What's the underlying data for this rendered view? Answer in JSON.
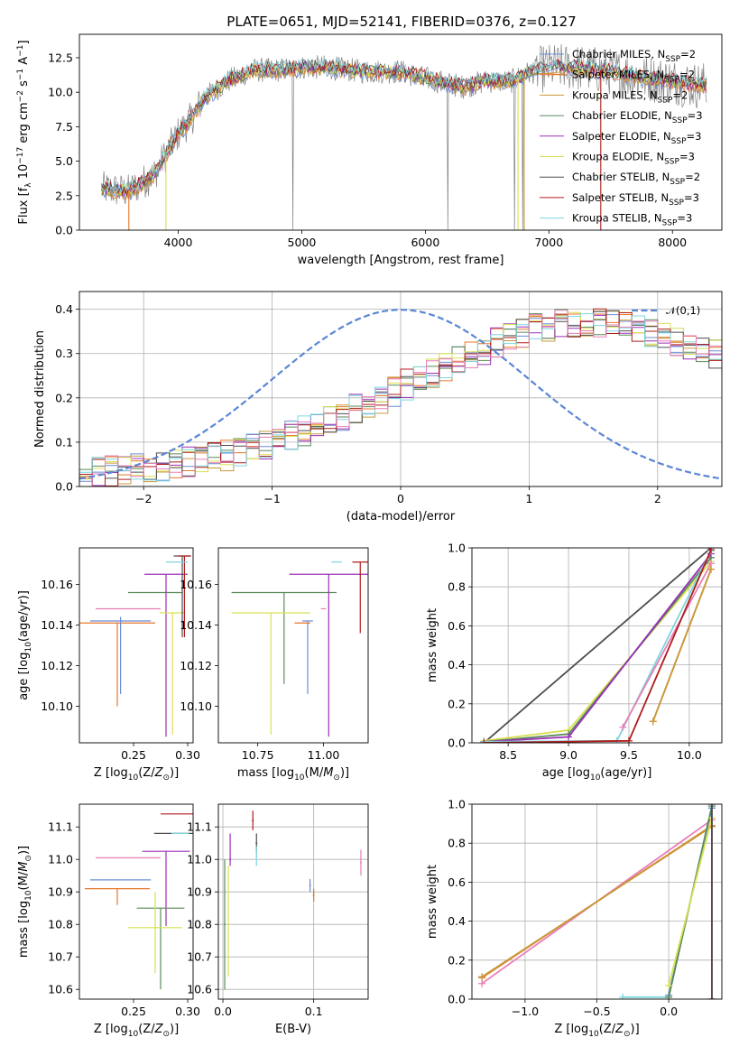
{
  "figure_title": "PLATE=0651, MJD=52141, FIBERID=0376, z=0.127",
  "colors": {
    "Chabrier MILES": "#6b8cd6",
    "Salpeter MILES": "#e8772a",
    "Kroupa MILES": "#c79a3a",
    "Chabrier ELODIE": "#5a8a5a",
    "Salpeter ELODIE": "#9b30b8",
    "Kroupa ELODIE": "#d9e052",
    "Chabrier STELIB": "#4d4d4d",
    "Salpeter STELIB": "#b01c1c",
    "Kroupa STELIB": "#7dd6e0",
    "Pink": "#e87fb8",
    "Spectrum data": "#808080",
    "Gauss": "#5b86d6"
  },
  "legend_top": [
    {
      "name": "Chabrier MILES",
      "label": "Chabrier MILES, N",
      "sub": "SSP",
      "suffix": "=2"
    },
    {
      "name": "Salpeter MILES",
      "label": "Salpeter MILES, N",
      "sub": "SSP",
      "suffix": "=2"
    },
    {
      "name": "Kroupa MILES",
      "label": "Kroupa MILES, N",
      "sub": "SSP",
      "suffix": "=2"
    },
    {
      "name": "Chabrier ELODIE",
      "label": "Chabrier ELODIE, N",
      "sub": "SSP",
      "suffix": "=3"
    },
    {
      "name": "Salpeter ELODIE",
      "label": "Salpeter ELODIE, N",
      "sub": "SSP",
      "suffix": "=3"
    },
    {
      "name": "Kroupa ELODIE",
      "label": "Kroupa ELODIE, N",
      "sub": "SSP",
      "suffix": "=3"
    },
    {
      "name": "Chabrier STELIB",
      "label": "Chabrier STELIB, N",
      "sub": "SSP",
      "suffix": "=2"
    },
    {
      "name": "Salpeter STELIB",
      "label": "Salpeter STELIB, N",
      "sub": "SSP",
      "suffix": "=3"
    },
    {
      "name": "Kroupa STELIB",
      "label": "Kroupa STELIB, N",
      "sub": "SSP",
      "suffix": "=3"
    }
  ],
  "chart_data": [
    {
      "id": "spectrum",
      "type": "line",
      "title": "PLATE=0651, MJD=52141, FIBERID=0376, z=0.127",
      "xlabel": "wavelength [Angstrom, rest frame]",
      "ylabel": "Flux [f_λ 10^-17 erg cm^-2 s^-1 A^-1]",
      "xlim": [
        3200,
        8400
      ],
      "ylim": [
        0,
        14.2
      ],
      "xticks": [
        4000,
        5000,
        6000,
        7000,
        8000
      ],
      "yticks": [
        0.0,
        2.5,
        5.0,
        7.5,
        10.0,
        12.5
      ],
      "grid": false,
      "legend": "top-right",
      "continuum_knots": {
        "x": [
          3400,
          3600,
          3800,
          3900,
          4000,
          4100,
          4200,
          4400,
          4600,
          4800,
          5000,
          5200,
          5500,
          5800,
          6000,
          6300,
          6500,
          6700,
          6800,
          7000,
          7200,
          7500,
          7800,
          8000,
          8200
        ],
        "y": [
          3.0,
          2.8,
          4.0,
          5.5,
          7.0,
          8.0,
          9.5,
          10.8,
          11.6,
          11.6,
          11.8,
          11.8,
          11.5,
          11.5,
          11.0,
          10.4,
          10.8,
          10.8,
          11.3,
          11.8,
          11.8,
          11.5,
          11.0,
          10.8,
          10.5
        ]
      },
      "model_drops_to_zero_at": [
        3600,
        3900,
        6750,
        6800,
        7420
      ],
      "data_spikes_down_at": [
        4930,
        6180,
        6720,
        6790
      ]
    },
    {
      "id": "residuals",
      "type": "step-histogram",
      "xlabel": "(data-model)/error",
      "ylabel": "Normed distribution",
      "xlim": [
        -2.5,
        2.5
      ],
      "ylim": [
        0,
        0.44
      ],
      "xticks": [
        -2,
        -1,
        0,
        1,
        2
      ],
      "yticks": [
        0.0,
        0.1,
        0.2,
        0.3,
        0.4
      ],
      "grid": true,
      "legend": "top-right",
      "reference_label": "𝒩(0,1)",
      "reference_curve": "standard normal pdf",
      "bin_start": -2.5,
      "bin_width": 0.1,
      "mean_shape": [
        0.03,
        0.03,
        0.035,
        0.035,
        0.04,
        0.04,
        0.045,
        0.05,
        0.055,
        0.06,
        0.065,
        0.07,
        0.08,
        0.085,
        0.095,
        0.105,
        0.115,
        0.125,
        0.135,
        0.15,
        0.16,
        0.175,
        0.19,
        0.2,
        0.215,
        0.23,
        0.245,
        0.255,
        0.27,
        0.285,
        0.3,
        0.31,
        0.325,
        0.335,
        0.345,
        0.355,
        0.36,
        0.365,
        0.37,
        0.37,
        0.37,
        0.365,
        0.36,
        0.355,
        0.35,
        0.34,
        0.33,
        0.32,
        0.31,
        0.3,
        0.285,
        0.27,
        0.255,
        0.24,
        0.225,
        0.21,
        0.195,
        0.18,
        0.165,
        0.155,
        0.145,
        0.135,
        0.125,
        0.115,
        0.105,
        0.1
      ]
    },
    {
      "id": "age_vs_Z",
      "type": "errorbar",
      "xlabel": "Z [log10(Z/Z☉)]",
      "ylabel": "age [log10(age/yr)]",
      "xlim": [
        0.2,
        0.305
      ],
      "ylim": [
        10.082,
        10.178
      ],
      "xticks": [
        0.25,
        0.3
      ],
      "yticks": [
        10.1,
        10.12,
        10.14,
        10.16
      ],
      "grid": false,
      "points": [
        {
          "series": "Salpeter MILES",
          "x": 0.235,
          "xerr": 0.035,
          "y": 10.141,
          "yerr": [
            0.041,
            0.0
          ]
        },
        {
          "series": "Chabrier MILES",
          "x": 0.238,
          "xerr": 0.028,
          "y": 10.142,
          "yerr": [
            0.036,
            0.002
          ]
        },
        {
          "series": "Pink",
          "x": 0.245,
          "xerr": 0.03,
          "y": 10.148,
          "yerr": [
            0.0,
            0.0
          ]
        },
        {
          "series": "Chabrier ELODIE",
          "x": 0.27,
          "xerr": 0.025,
          "y": 10.156,
          "yerr": [
            0.0,
            0.0
          ]
        },
        {
          "series": "Salpeter ELODIE",
          "x": 0.28,
          "xerr": 0.02,
          "y": 10.165,
          "yerr": [
            0.08,
            0.0
          ]
        },
        {
          "series": "Kroupa ELODIE",
          "x": 0.286,
          "xerr": 0.012,
          "y": 10.146,
          "yerr": [
            0.06,
            0.0
          ]
        },
        {
          "series": "Chabrier STELIB",
          "x": 0.295,
          "xerr": 0.008,
          "y": 10.174,
          "yerr": [
            0.04,
            0.0
          ]
        },
        {
          "series": "Salpeter STELIB",
          "x": 0.297,
          "xerr": 0.006,
          "y": 10.174,
          "yerr": [
            0.04,
            0.0
          ]
        },
        {
          "series": "Kroupa STELIB",
          "x": 0.29,
          "xerr": 0.01,
          "y": 10.171,
          "yerr": [
            0.0,
            0.0
          ]
        }
      ]
    },
    {
      "id": "age_vs_mass",
      "type": "errorbar",
      "xlabel": "mass [log10(M/M☉)]",
      "ylabel": "",
      "xlim": [
        10.6,
        11.17
      ],
      "ylim": [
        10.082,
        10.178
      ],
      "xticks": [
        10.75,
        11.0
      ],
      "yticks": [
        10.1,
        10.12,
        10.14,
        10.16
      ],
      "grid": false,
      "points": [
        {
          "series": "Chabrier ELODIE",
          "x": 10.85,
          "xerr": 0.2,
          "y": 10.156,
          "yerr": [
            0.045,
            0.0
          ]
        },
        {
          "series": "Kroupa ELODIE",
          "x": 10.8,
          "xerr": 0.15,
          "y": 10.146,
          "yerr": [
            0.06,
            0.0
          ]
        },
        {
          "series": "Salpeter ELODIE",
          "x": 11.02,
          "xerr": 0.15,
          "y": 10.165,
          "yerr": [
            0.08,
            0.0
          ]
        },
        {
          "series": "Chabrier MILES",
          "x": 10.94,
          "xerr": 0.02,
          "y": 10.142,
          "yerr": [
            0.036,
            0.0
          ]
        },
        {
          "series": "Salpeter MILES",
          "x": 10.92,
          "xerr": 0.03,
          "y": 10.141,
          "yerr": [
            0.0,
            0.0
          ]
        },
        {
          "series": "Pink",
          "x": 11.0,
          "xerr": 0.01,
          "y": 10.148,
          "yerr": [
            0.0,
            0.0
          ]
        },
        {
          "series": "Kroupa STELIB",
          "x": 11.05,
          "xerr": 0.02,
          "y": 10.171,
          "yerr": [
            0.0,
            0.0
          ]
        },
        {
          "series": "Salpeter STELIB",
          "x": 11.14,
          "xerr": 0.03,
          "y": 10.171,
          "yerr": [
            0.035,
            0.0
          ]
        }
      ]
    },
    {
      "id": "massweight_vs_age",
      "type": "line",
      "xlabel": "age  [log10(age/yr)]",
      "ylabel": "mass weight",
      "xlim": [
        8.2,
        10.27
      ],
      "ylim": [
        0.0,
        1.0
      ],
      "xticks": [
        8.5,
        9.0,
        9.5,
        10.0
      ],
      "yticks": [
        0.0,
        0.2,
        0.4,
        0.6,
        0.8,
        1.0
      ],
      "grid": true,
      "series": [
        {
          "name": "Chabrier STELIB",
          "x": [
            8.3,
            10.18
          ],
          "y": [
            0.0,
            1.0
          ]
        },
        {
          "name": "Kroupa ELODIE",
          "x": [
            8.3,
            9.0,
            10.18
          ],
          "y": [
            0.01,
            0.065,
            0.93
          ]
        },
        {
          "name": "Chabrier ELODIE",
          "x": [
            8.3,
            9.0,
            10.18
          ],
          "y": [
            0.005,
            0.045,
            0.95
          ]
        },
        {
          "name": "Salpeter ELODIE",
          "x": [
            8.3,
            9.0,
            10.18
          ],
          "y": [
            0.005,
            0.03,
            0.97
          ]
        },
        {
          "name": "Kroupa STELIB",
          "x": [
            8.3,
            9.4,
            10.18
          ],
          "y": [
            0.005,
            0.01,
            0.985
          ]
        },
        {
          "name": "Pink",
          "x": [
            9.45,
            10.18
          ],
          "y": [
            0.08,
            0.92
          ]
        },
        {
          "name": "Salpeter STELIB",
          "x": [
            8.3,
            9.5,
            10.18
          ],
          "y": [
            0.0,
            0.01,
            0.99
          ]
        },
        {
          "name": "Salpeter MILES",
          "x": [
            9.7,
            10.18
          ],
          "y": [
            0.11,
            0.89
          ]
        },
        {
          "name": "Kroupa MILES",
          "x": [
            9.7,
            10.18
          ],
          "y": [
            0.11,
            0.89
          ]
        }
      ]
    },
    {
      "id": "mass_vs_Z",
      "type": "errorbar",
      "xlabel": "Z [log10(Z/Z☉)]",
      "ylabel": "mass [log10(M/M☉)]",
      "xlim": [
        0.2,
        0.305
      ],
      "ylim": [
        10.57,
        11.17
      ],
      "xticks": [
        0.25,
        0.3
      ],
      "yticks": [
        10.6,
        10.7,
        10.8,
        10.9,
        11.0,
        11.1
      ],
      "grid": false,
      "points": [
        {
          "series": "Salpeter STELIB",
          "x": 0.29,
          "xerr": 0.015,
          "y": 11.14,
          "yerr": [
            0.0,
            0.0
          ]
        },
        {
          "series": "Chabrier STELIB",
          "x": 0.287,
          "xerr": 0.018,
          "y": 11.08,
          "yerr": [
            0.0,
            0.0
          ]
        },
        {
          "series": "Salpeter ELODIE",
          "x": 0.28,
          "xerr": 0.022,
          "y": 11.025,
          "yerr": [
            0.23,
            0.0
          ]
        },
        {
          "series": "Pink",
          "x": 0.245,
          "xerr": 0.03,
          "y": 11.005,
          "yerr": [
            0.0,
            0.0
          ]
        },
        {
          "series": "Chabrier MILES",
          "x": 0.238,
          "xerr": 0.028,
          "y": 10.937,
          "yerr": [
            0.0,
            0.0
          ]
        },
        {
          "series": "Salpeter MILES",
          "x": 0.235,
          "xerr": 0.03,
          "y": 10.91,
          "yerr": [
            0.05,
            0.0
          ]
        },
        {
          "series": "Chabrier ELODIE",
          "x": 0.275,
          "xerr": 0.022,
          "y": 10.85,
          "yerr": [
            0.25,
            0.0
          ]
        },
        {
          "series": "Kroupa ELODIE",
          "x": 0.27,
          "xerr": 0.025,
          "y": 10.79,
          "yerr": [
            0.14,
            0.11
          ]
        },
        {
          "series": "Kroupa STELIB",
          "x": 0.293,
          "xerr": 0.008,
          "y": 11.08,
          "yerr": [
            0.0,
            0.0
          ]
        }
      ]
    },
    {
      "id": "mass_vs_EBV",
      "type": "errorbar",
      "xlabel": "E(B-V)",
      "ylabel": "",
      "xlim": [
        -0.005,
        0.16
      ],
      "ylim": [
        10.57,
        11.17
      ],
      "xticks": [
        0.0,
        0.1
      ],
      "yticks": [
        10.6,
        10.7,
        10.8,
        10.9,
        11.0,
        11.1
      ],
      "grid": true,
      "points": [
        {
          "series": "Chabrier ELODIE",
          "x": 0.002,
          "xerr": 0.001,
          "y": 10.8,
          "yerr": [
            0.2,
            0.2
          ]
        },
        {
          "series": "Kroupa ELODIE",
          "x": 0.006,
          "xerr": 0.001,
          "y": 10.8,
          "yerr": [
            0.16,
            0.18
          ]
        },
        {
          "series": "Salpeter ELODIE",
          "x": 0.008,
          "xerr": 0.001,
          "y": 11.0,
          "yerr": [
            0.02,
            0.08
          ]
        },
        {
          "series": "Salpeter STELIB",
          "x": 0.033,
          "xerr": 0.001,
          "y": 11.12,
          "yerr": [
            0.03,
            0.03
          ]
        },
        {
          "series": "Chabrier STELIB",
          "x": 0.037,
          "xerr": 0.001,
          "y": 11.05,
          "yerr": [
            0.03,
            0.03
          ]
        },
        {
          "series": "Kroupa STELIB",
          "x": 0.037,
          "xerr": 0.001,
          "y": 11.01,
          "yerr": [
            0.03,
            0.03
          ]
        },
        {
          "series": "Chabrier MILES",
          "x": 0.096,
          "xerr": 0.001,
          "y": 10.92,
          "yerr": [
            0.02,
            0.02
          ]
        },
        {
          "series": "Salpeter MILES",
          "x": 0.1,
          "xerr": 0.001,
          "y": 10.89,
          "yerr": [
            0.02,
            0.02
          ]
        },
        {
          "series": "Pink",
          "x": 0.152,
          "xerr": 0.001,
          "y": 10.99,
          "yerr": [
            0.04,
            0.04
          ]
        }
      ]
    },
    {
      "id": "massweight_vs_Z",
      "type": "line",
      "xlabel": "Z [log10(Z/Z☉)]",
      "ylabel": "mass weight",
      "xlim": [
        -1.37,
        0.37
      ],
      "ylim": [
        0.0,
        1.0
      ],
      "xticks": [
        -1.0,
        -0.5,
        0.0
      ],
      "yticks": [
        0.0,
        0.2,
        0.4,
        0.6,
        0.8,
        1.0
      ],
      "grid": true,
      "series": [
        {
          "name": "Pink",
          "x": [
            -1.3,
            0.3
          ],
          "y": [
            0.08,
            0.92
          ]
        },
        {
          "name": "Salpeter MILES",
          "x": [
            -1.3,
            0.3
          ],
          "y": [
            0.11,
            0.89
          ]
        },
        {
          "name": "Kroupa MILES",
          "x": [
            -1.3,
            0.3
          ],
          "y": [
            0.115,
            0.885
          ]
        },
        {
          "name": "Kroupa STELIB",
          "x": [
            -0.32,
            0.0,
            0.3
          ],
          "y": [
            0.01,
            0.01,
            0.99
          ]
        },
        {
          "name": "Chabrier MILES",
          "x": [
            0.0,
            0.3
          ],
          "y": [
            0.02,
            0.98
          ]
        },
        {
          "name": "Chabrier ELODIE",
          "x": [
            0.0,
            0.3
          ],
          "y": [
            0.01,
            0.99
          ]
        },
        {
          "name": "Kroupa ELODIE",
          "x": [
            0.0,
            0.3,
            0.3
          ],
          "y": [
            0.07,
            0.93,
            0.0
          ]
        },
        {
          "name": "Salpeter ELODIE",
          "x": [
            0.3,
            0.3
          ],
          "y": [
            0.0,
            1.0
          ]
        },
        {
          "name": "Chabrier STELIB",
          "x": [
            0.3,
            0.3
          ],
          "y": [
            0.0,
            1.0
          ]
        }
      ]
    }
  ]
}
